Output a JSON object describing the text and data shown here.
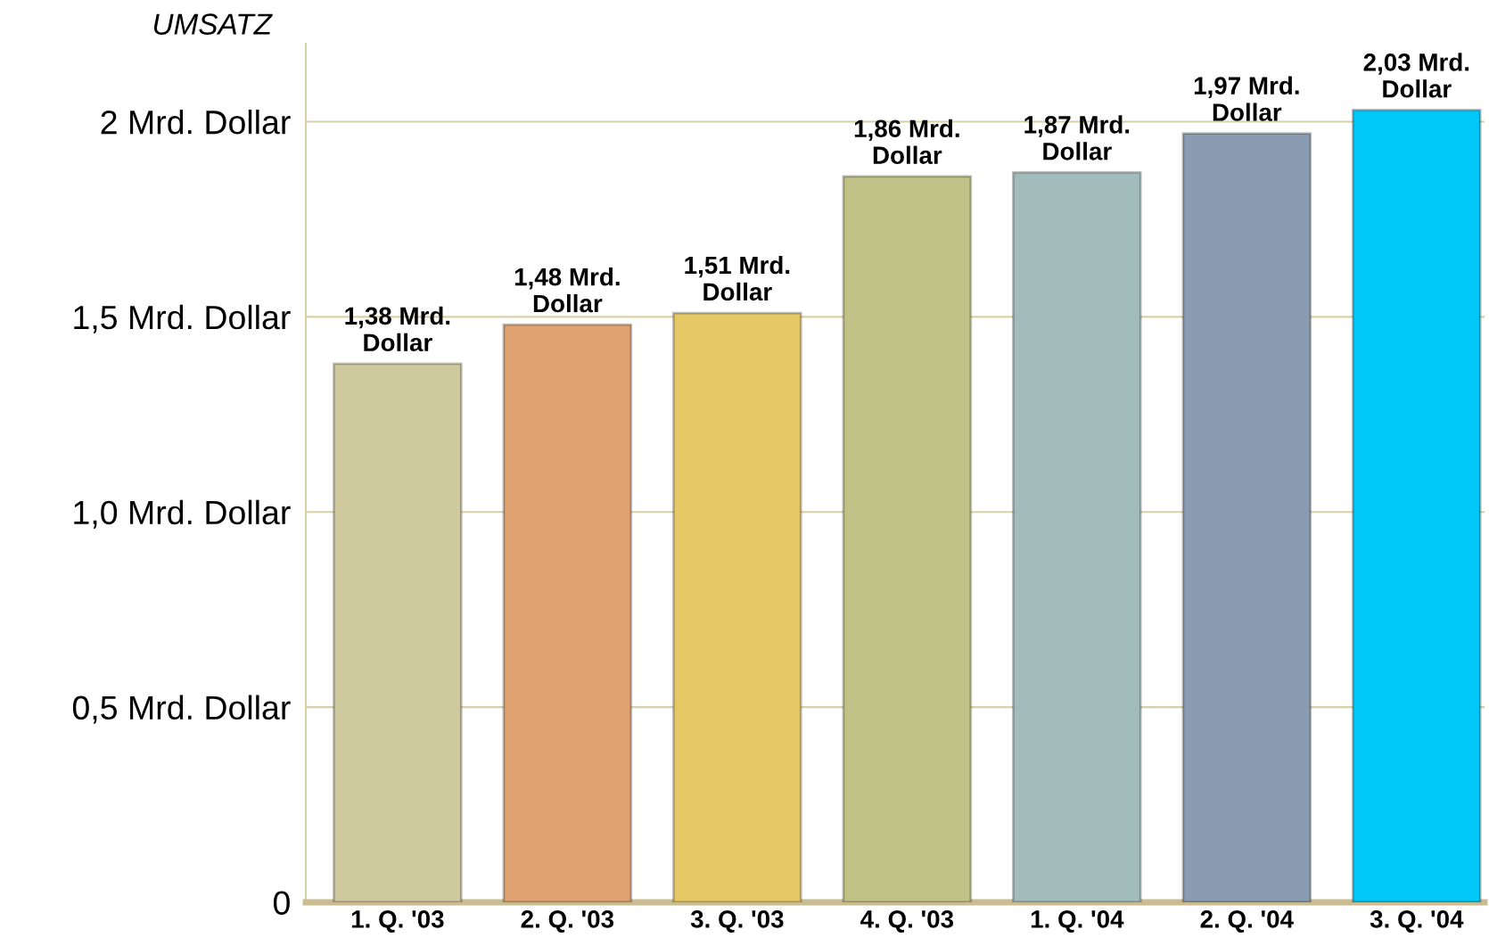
{
  "chart_data": {
    "type": "bar",
    "title": "UMSATZ",
    "categories": [
      "1. Q. '03",
      "2. Q. '03",
      "3. Q. '03",
      "4. Q. '03",
      "1. Q. '04",
      "2. Q. '04",
      "3. Q. '04"
    ],
    "values": [
      1.38,
      1.48,
      1.51,
      1.86,
      1.87,
      1.97,
      2.03
    ],
    "colors": [
      "#cfc9a0",
      "#e0a270",
      "#e6c866",
      "#c0c288",
      "#a2bcbc",
      "#8a9cb2",
      "#00c8f8"
    ],
    "value_labels": [
      "1,38 Mrd.\nDollar",
      "1,48 Mrd.\nDollar",
      "1,51 Mrd.\nDollar",
      "1,86 Mrd.\nDollar",
      "1,87 Mrd.\nDollar",
      "1,97 Mrd.\nDollar",
      "2,03 Mrd.\nDollar"
    ],
    "ylim": [
      0,
      2.2
    ],
    "yticks": [
      0,
      {
        "value": 0.5,
        "label": "0,5 Mrd. Dollar"
      },
      {
        "value": 1.0,
        "label": "1,0 Mrd. Dollar"
      },
      {
        "value": 1.5,
        "label": "1,5 Mrd. Dollar"
      },
      {
        "value": 2,
        "label": "2 Mrd. Dollar"
      }
    ],
    "grid": "y",
    "legend": false
  }
}
